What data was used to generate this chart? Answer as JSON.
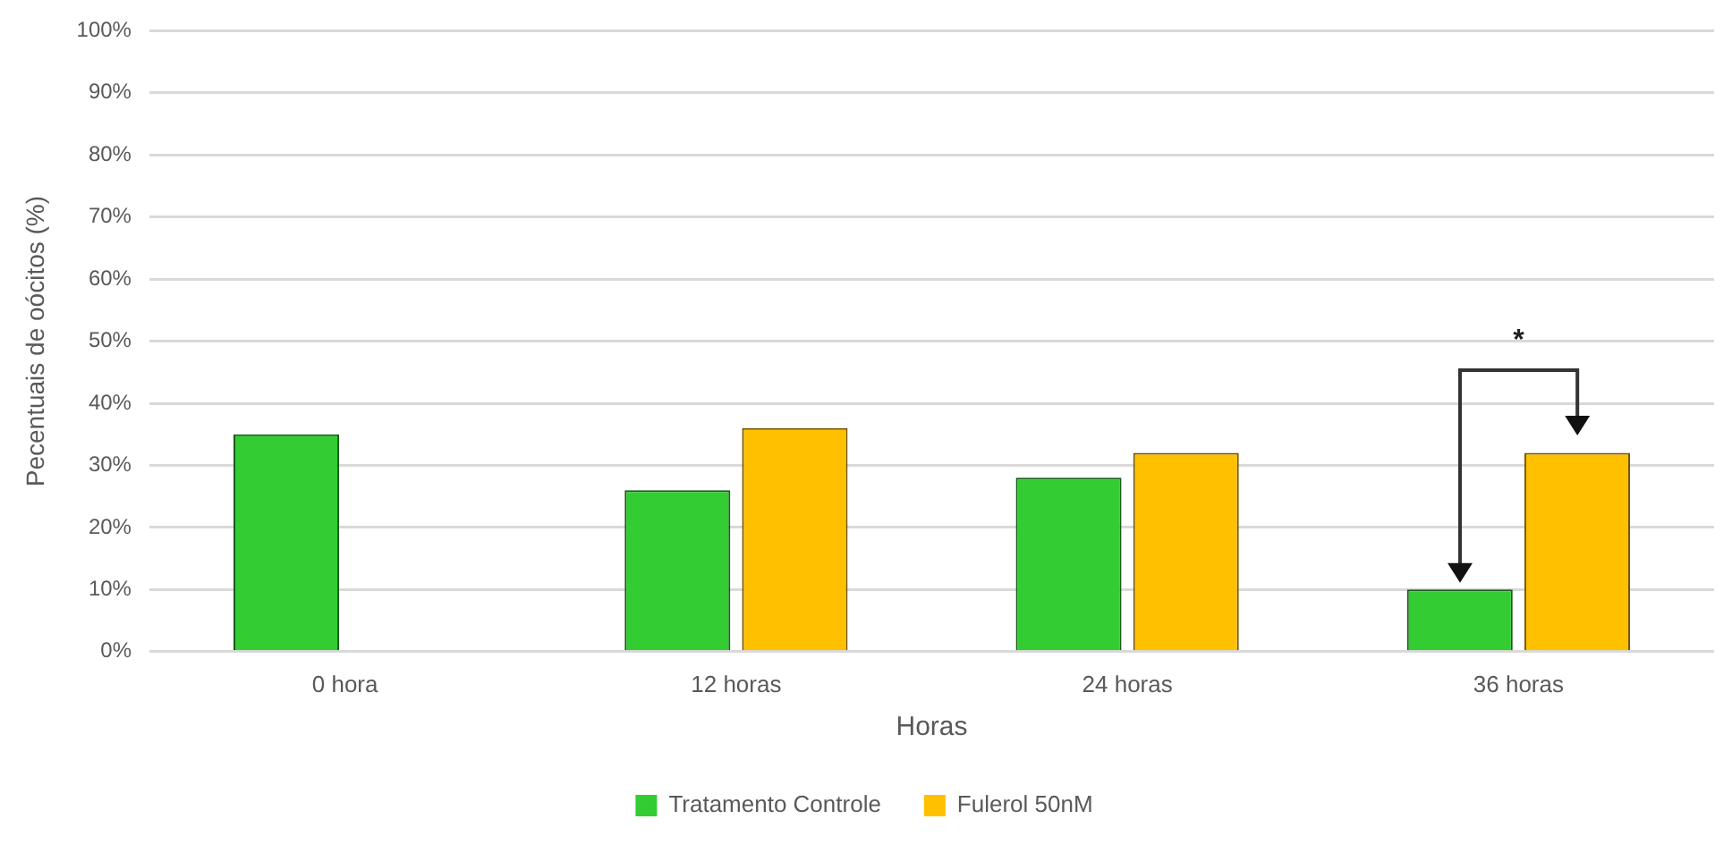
{
  "chart_data": {
    "type": "bar",
    "xlabel": "Horas",
    "ylabel": "Pecentuais de oócitos (%)",
    "categories": [
      "0 hora",
      "12 horas",
      "24 horas",
      "36 horas"
    ],
    "series": [
      {
        "name": "Tratamento Controle",
        "color": "#33cc33",
        "values": [
          35,
          26,
          28,
          10
        ]
      },
      {
        "name": "Fulerol 50nM",
        "color": "#ffc000",
        "values": [
          null,
          36,
          32,
          32
        ]
      }
    ],
    "ylim": [
      0,
      100
    ],
    "yticks": [
      {
        "value": 0,
        "label": "0%"
      },
      {
        "value": 10,
        "label": "10%"
      },
      {
        "value": 20,
        "label": "20%"
      },
      {
        "value": 30,
        "label": "30%"
      },
      {
        "value": 40,
        "label": "40%"
      },
      {
        "value": 50,
        "label": "50%"
      },
      {
        "value": 60,
        "label": "60%"
      },
      {
        "value": 70,
        "label": "70%"
      },
      {
        "value": 80,
        "label": "80%"
      },
      {
        "value": 90,
        "label": "90%"
      },
      {
        "value": 100,
        "label": "100%"
      }
    ],
    "grid": "y",
    "legend": "bottom",
    "annotations": [
      "*"
    ]
  }
}
